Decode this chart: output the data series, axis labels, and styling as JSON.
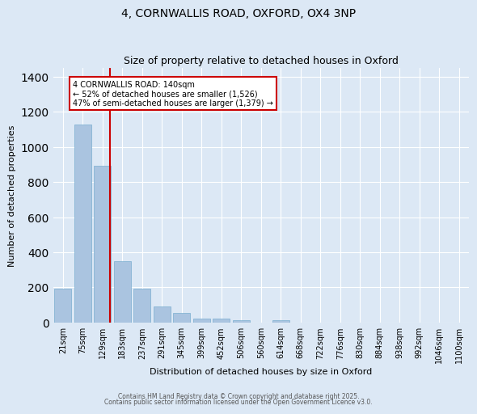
{
  "title1": "4, CORNWALLIS ROAD, OXFORD, OX4 3NP",
  "title2": "Size of property relative to detached houses in Oxford",
  "xlabel": "Distribution of detached houses by size in Oxford",
  "ylabel": "Number of detached properties",
  "categories": [
    "21sqm",
    "75sqm",
    "129sqm",
    "183sqm",
    "237sqm",
    "291sqm",
    "345sqm",
    "399sqm",
    "452sqm",
    "506sqm",
    "560sqm",
    "614sqm",
    "668sqm",
    "722sqm",
    "776sqm",
    "830sqm",
    "884sqm",
    "938sqm",
    "992sqm",
    "1046sqm",
    "1100sqm"
  ],
  "values": [
    195,
    1130,
    895,
    350,
    195,
    90,
    55,
    20,
    20,
    12,
    0,
    12,
    0,
    0,
    0,
    0,
    0,
    0,
    0,
    0,
    0
  ],
  "bar_color": "#aac4e0",
  "bar_edge_color": "#7aaed0",
  "background_color": "#dce8f5",
  "grid_color": "#ffffff",
  "red_line_x": 2.37,
  "ylim": [
    0,
    1450
  ],
  "yticks": [
    0,
    200,
    400,
    600,
    800,
    1000,
    1200,
    1400
  ],
  "annotation_text": "4 CORNWALLIS ROAD: 140sqm\n← 52% of detached houses are smaller (1,526)\n47% of semi-detached houses are larger (1,379) →",
  "annotation_color": "#cc0000",
  "footer1": "Contains HM Land Registry data © Crown copyright and database right 2025.",
  "footer2": "Contains public sector information licensed under the Open Government Licence v3.0."
}
